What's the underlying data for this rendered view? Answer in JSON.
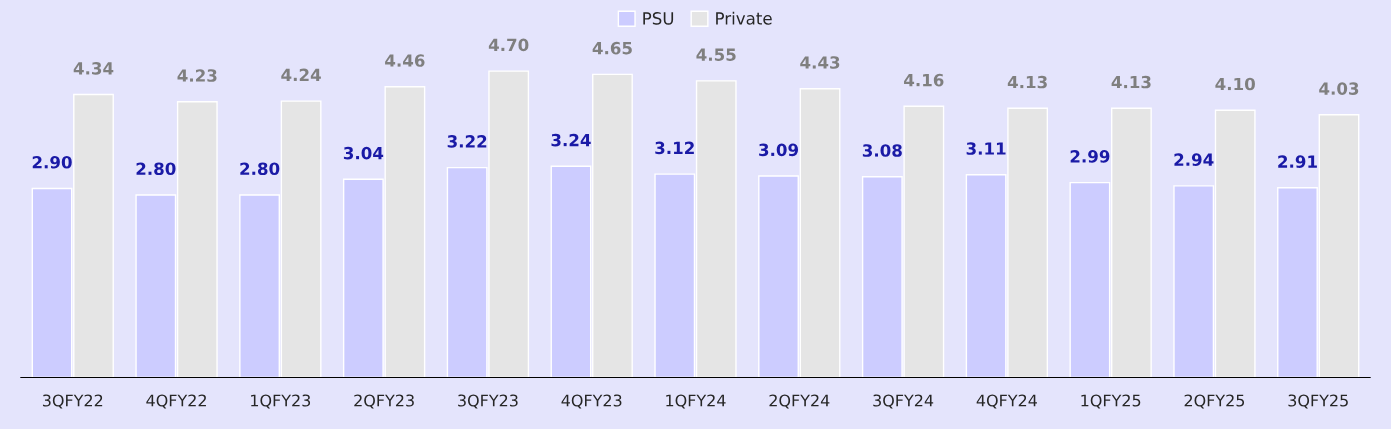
{
  "chart_data": {
    "type": "bar",
    "categories": [
      "3QFY22",
      "4QFY22",
      "1QFY23",
      "2QFY23",
      "3QFY23",
      "4QFY23",
      "1QFY24",
      "2QFY24",
      "3QFY24",
      "4QFY24",
      "1QFY25",
      "2QFY25",
      "3QFY25"
    ],
    "series": [
      {
        "name": "PSU",
        "color": "#ccccff",
        "values": [
          2.9,
          2.8,
          2.8,
          3.04,
          3.22,
          3.24,
          3.12,
          3.09,
          3.08,
          3.11,
          2.99,
          2.94,
          2.91
        ],
        "value_labels": [
          "2.90",
          "2.80",
          "2.80",
          "3.04",
          "3.22",
          "3.24",
          "3.12",
          "3.09",
          "3.08",
          "3.11",
          "2.99",
          "2.94",
          "2.91"
        ]
      },
      {
        "name": "Private",
        "color": "#e5e5e5",
        "values": [
          4.34,
          4.23,
          4.24,
          4.46,
          4.7,
          4.65,
          4.55,
          4.43,
          4.16,
          4.13,
          4.13,
          4.1,
          4.03
        ],
        "value_labels": [
          "4.34",
          "4.23",
          "4.24",
          "4.46",
          "4.70",
          "4.65",
          "4.55",
          "4.43",
          "4.16",
          "4.13",
          "4.13",
          "4.10",
          "4.03"
        ]
      }
    ],
    "legend": "top"
  }
}
